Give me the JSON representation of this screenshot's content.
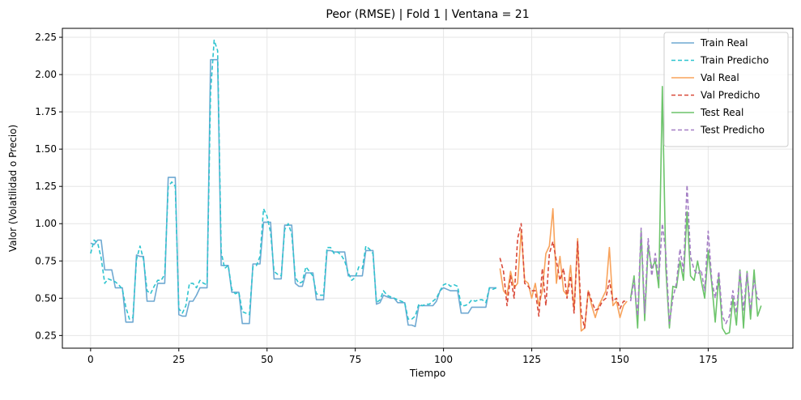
{
  "chart_data": {
    "type": "line",
    "title": "Peor (RMSE) | Fold 1 | Ventana = 21",
    "xlabel": "Tiempo",
    "ylabel": "Valor (Volatilidad o Precio)",
    "xlim": [
      -8,
      199
    ],
    "ylim": [
      0.165,
      2.31
    ],
    "xticks": [
      0,
      25,
      50,
      75,
      100,
      125,
      150,
      175
    ],
    "yticks": [
      0.25,
      0.5,
      0.75,
      1.0,
      1.25,
      1.5,
      1.75,
      2.0,
      2.25
    ],
    "ytick_labels": [
      "0.25",
      "0.50",
      "0.75",
      "1.00",
      "1.25",
      "1.50",
      "1.75",
      "2.00",
      "2.25"
    ],
    "grid": true,
    "legend_position": "top-right",
    "series": [
      {
        "name": "Train Real",
        "color": "#6fa9d2",
        "style": "solid",
        "x": [
          0,
          1,
          2,
          3,
          4,
          5,
          6,
          7,
          8,
          9,
          10,
          11,
          12,
          13,
          14,
          15,
          16,
          17,
          18,
          19,
          20,
          21,
          22,
          23,
          24,
          25,
          26,
          27,
          28,
          29,
          30,
          31,
          32,
          33,
          34,
          35,
          36,
          37,
          38,
          39,
          40,
          41,
          42,
          43,
          44,
          45,
          46,
          47,
          48,
          49,
          50,
          51,
          52,
          53,
          54,
          55,
          56,
          57,
          58,
          59,
          60,
          61,
          62,
          63,
          64,
          65,
          66,
          67,
          68,
          69,
          70,
          71,
          72,
          73,
          74,
          75,
          76,
          77,
          78,
          79,
          80,
          81,
          82,
          83,
          84,
          85,
          86,
          87,
          88,
          89,
          90,
          91,
          92,
          93,
          94,
          95,
          96,
          97,
          98,
          99,
          100,
          101,
          102,
          103,
          104,
          105,
          106,
          107,
          108,
          109,
          110,
          111,
          112,
          113,
          114,
          115
        ],
        "y": [
          0.87,
          0.86,
          0.89,
          0.89,
          0.69,
          0.69,
          0.69,
          0.57,
          0.57,
          0.57,
          0.34,
          0.34,
          0.34,
          0.79,
          0.78,
          0.78,
          0.48,
          0.48,
          0.48,
          0.6,
          0.6,
          0.6,
          1.31,
          1.31,
          1.31,
          0.39,
          0.38,
          0.38,
          0.48,
          0.48,
          0.52,
          0.57,
          0.57,
          0.57,
          2.1,
          2.1,
          2.1,
          0.72,
          0.72,
          0.72,
          0.54,
          0.54,
          0.54,
          0.33,
          0.33,
          0.33,
          0.73,
          0.73,
          0.73,
          1.01,
          1.01,
          1.01,
          0.63,
          0.63,
          0.63,
          0.99,
          0.99,
          0.99,
          0.6,
          0.58,
          0.58,
          0.67,
          0.67,
          0.67,
          0.49,
          0.49,
          0.49,
          0.82,
          0.82,
          0.81,
          0.81,
          0.81,
          0.81,
          0.65,
          0.65,
          0.65,
          0.65,
          0.65,
          0.82,
          0.82,
          0.82,
          0.46,
          0.47,
          0.52,
          0.51,
          0.5,
          0.5,
          0.47,
          0.47,
          0.47,
          0.32,
          0.32,
          0.31,
          0.45,
          0.45,
          0.45,
          0.45,
          0.45,
          0.48,
          0.55,
          0.57,
          0.56,
          0.55,
          0.55,
          0.55,
          0.4,
          0.4,
          0.4,
          0.44,
          0.44,
          0.44,
          0.44,
          0.44,
          0.57,
          0.57,
          0.57
        ],
        "legend_label": "Train Real"
      },
      {
        "name": "Train Predicho",
        "color": "#2ec4cf",
        "style": "dashed",
        "x": [
          0,
          1,
          2,
          3,
          4,
          5,
          6,
          7,
          8,
          9,
          10,
          11,
          12,
          13,
          14,
          15,
          16,
          17,
          18,
          19,
          20,
          21,
          22,
          23,
          24,
          25,
          26,
          27,
          28,
          29,
          30,
          31,
          32,
          33,
          34,
          35,
          36,
          37,
          38,
          39,
          40,
          41,
          42,
          43,
          44,
          45,
          46,
          47,
          48,
          49,
          50,
          51,
          52,
          53,
          54,
          55,
          56,
          57,
          58,
          59,
          60,
          61,
          62,
          63,
          64,
          65,
          66,
          67,
          68,
          69,
          70,
          71,
          72,
          73,
          74,
          75,
          76,
          77,
          78,
          79,
          80,
          81,
          82,
          83,
          84,
          85,
          86,
          87,
          88,
          89,
          90,
          91,
          92,
          93,
          94,
          95,
          96,
          97,
          98,
          99,
          100,
          101,
          102,
          103,
          104,
          105,
          106,
          107,
          108,
          109,
          110,
          111,
          112,
          113,
          114,
          115
        ],
        "y": [
          0.8,
          0.89,
          0.87,
          0.77,
          0.6,
          0.63,
          0.62,
          0.61,
          0.59,
          0.56,
          0.44,
          0.36,
          0.37,
          0.76,
          0.85,
          0.76,
          0.55,
          0.53,
          0.58,
          0.62,
          0.62,
          0.66,
          1.25,
          1.28,
          1.25,
          0.43,
          0.4,
          0.45,
          0.6,
          0.6,
          0.57,
          0.62,
          0.6,
          0.59,
          1.88,
          2.23,
          2.16,
          0.81,
          0.7,
          0.72,
          0.56,
          0.53,
          0.54,
          0.41,
          0.4,
          0.39,
          0.71,
          0.72,
          0.78,
          1.1,
          1.05,
          0.94,
          0.68,
          0.66,
          0.65,
          0.96,
          1.0,
          0.93,
          0.64,
          0.6,
          0.61,
          0.71,
          0.68,
          0.65,
          0.53,
          0.52,
          0.52,
          0.84,
          0.84,
          0.8,
          0.81,
          0.79,
          0.75,
          0.67,
          0.62,
          0.64,
          0.71,
          0.7,
          0.85,
          0.83,
          0.8,
          0.47,
          0.49,
          0.55,
          0.52,
          0.51,
          0.5,
          0.49,
          0.48,
          0.47,
          0.36,
          0.36,
          0.38,
          0.46,
          0.45,
          0.46,
          0.46,
          0.48,
          0.5,
          0.55,
          0.59,
          0.6,
          0.58,
          0.59,
          0.58,
          0.45,
          0.45,
          0.46,
          0.49,
          0.48,
          0.49,
          0.49,
          0.47,
          0.57,
          0.56,
          0.57
        ],
        "legend_label": "Train Predicho"
      },
      {
        "name": "Val Real",
        "color": "#f8a35c",
        "style": "solid",
        "x": [
          116,
          117,
          118,
          119,
          120,
          121,
          122,
          123,
          124,
          125,
          126,
          127,
          128,
          129,
          130,
          131,
          132,
          133,
          134,
          135,
          136,
          137,
          138,
          139,
          140,
          141,
          142,
          143,
          144,
          145,
          146,
          147,
          148,
          149,
          150,
          151,
          152
        ],
        "y": [
          0.7,
          0.55,
          0.52,
          0.68,
          0.57,
          0.6,
          0.95,
          0.62,
          0.6,
          0.5,
          0.6,
          0.45,
          0.55,
          0.8,
          0.85,
          1.1,
          0.6,
          0.78,
          0.55,
          0.52,
          0.72,
          0.42,
          0.9,
          0.28,
          0.3,
          0.55,
          0.45,
          0.37,
          0.45,
          0.5,
          0.55,
          0.84,
          0.45,
          0.48,
          0.37,
          0.45,
          0.48
        ],
        "legend_label": "Val Real"
      },
      {
        "name": "Val Predicho",
        "color": "#d94a3a",
        "style": "dashed",
        "x": [
          116,
          117,
          118,
          119,
          120,
          121,
          122,
          123,
          124,
          125,
          126,
          127,
          128,
          129,
          130,
          131,
          132,
          133,
          134,
          135,
          136,
          137,
          138,
          139,
          140,
          141,
          142,
          143,
          144,
          145,
          146,
          147,
          148,
          149,
          150,
          151,
          152
        ],
        "y": [
          0.77,
          0.68,
          0.45,
          0.65,
          0.5,
          0.9,
          1.0,
          0.6,
          0.58,
          0.55,
          0.55,
          0.38,
          0.7,
          0.45,
          0.8,
          0.88,
          0.75,
          0.62,
          0.7,
          0.5,
          0.65,
          0.4,
          0.88,
          0.4,
          0.3,
          0.55,
          0.48,
          0.42,
          0.43,
          0.48,
          0.5,
          0.62,
          0.48,
          0.5,
          0.43,
          0.48,
          0.48
        ],
        "legend_label": "Val Predicho"
      },
      {
        "name": "Test Real",
        "color": "#6cc46a",
        "style": "solid",
        "x": [
          153,
          154,
          155,
          156,
          157,
          158,
          159,
          160,
          161,
          162,
          163,
          164,
          165,
          166,
          167,
          168,
          169,
          170,
          171,
          172,
          173,
          174,
          175,
          176,
          177,
          178,
          179,
          180,
          181,
          182,
          183,
          184,
          185,
          186,
          187,
          188,
          189,
          190
        ],
        "y": [
          0.5,
          0.65,
          0.3,
          0.95,
          0.35,
          0.85,
          0.7,
          0.75,
          0.57,
          1.92,
          0.7,
          0.3,
          0.58,
          0.57,
          0.75,
          0.62,
          1.08,
          0.65,
          0.62,
          0.75,
          0.62,
          0.5,
          0.82,
          0.6,
          0.34,
          0.65,
          0.3,
          0.26,
          0.27,
          0.5,
          0.32,
          0.69,
          0.3,
          0.68,
          0.36,
          0.69,
          0.38,
          0.45
        ],
        "legend_label": "Test Real"
      },
      {
        "name": "Test Predicho",
        "color": "#a47ec4",
        "style": "dashed",
        "x": [
          153,
          154,
          155,
          156,
          157,
          158,
          159,
          160,
          161,
          162,
          163,
          164,
          165,
          166,
          167,
          168,
          169,
          170,
          171,
          172,
          173,
          174,
          175,
          176,
          177,
          178,
          179,
          180,
          181,
          182,
          183,
          184,
          185,
          186,
          187,
          188,
          189,
          190
        ],
        "y": [
          0.48,
          0.62,
          0.38,
          0.97,
          0.4,
          0.9,
          0.65,
          0.8,
          0.63,
          1.0,
          0.8,
          0.33,
          0.5,
          0.6,
          0.83,
          0.68,
          1.26,
          0.78,
          0.69,
          0.66,
          0.69,
          0.55,
          0.95,
          0.62,
          0.5,
          0.68,
          0.38,
          0.33,
          0.38,
          0.55,
          0.4,
          0.68,
          0.42,
          0.67,
          0.42,
          0.62,
          0.5,
          0.48
        ],
        "legend_label": "Test Predicho"
      }
    ]
  }
}
